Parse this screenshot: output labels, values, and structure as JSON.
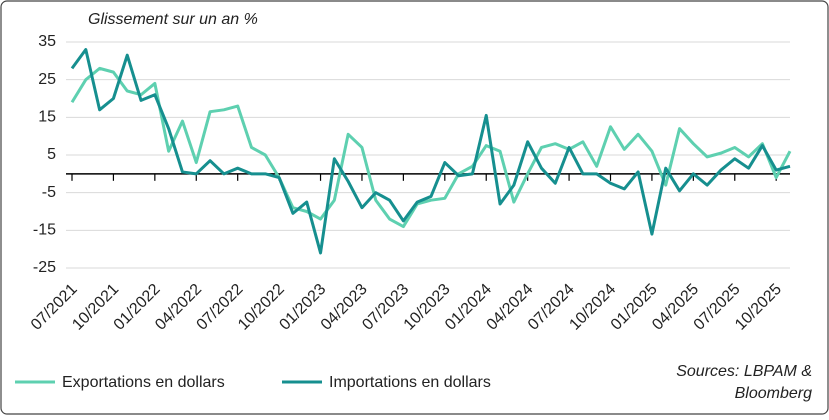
{
  "chart_data": {
    "type": "line",
    "title": "Glissement sur un an %",
    "categories": [
      "07/2021",
      null,
      null,
      "10/2021",
      null,
      null,
      "01/2022",
      null,
      null,
      "04/2022",
      null,
      null,
      "07/2022",
      null,
      null,
      "10/2022",
      null,
      null,
      "01/2023",
      null,
      null,
      "04/2023",
      null,
      null,
      "07/2023",
      null,
      null,
      "10/2023",
      null,
      null,
      "01/2024",
      null,
      null,
      "04/2024",
      null,
      null,
      "07/2024",
      null,
      null,
      "10/2024",
      null,
      null,
      "01/2025",
      null,
      null,
      "04/2025",
      null,
      null,
      "07/2025",
      null,
      null,
      "10/2025",
      null
    ],
    "series": [
      {
        "name": "Exportations en dollars",
        "color": "#5ed0b0",
        "values": [
          19,
          25,
          28,
          27,
          22,
          21,
          24,
          6,
          14,
          3,
          16.5,
          17,
          18,
          7,
          5,
          -1,
          -9,
          -10,
          -12,
          -7,
          10.5,
          7,
          -7,
          -12,
          -14,
          -8,
          -7,
          -6.5,
          0,
          2,
          7.5,
          6,
          -7.5,
          0,
          7,
          8,
          6.5,
          8.5,
          2,
          12.5,
          6.5,
          10.5,
          6,
          -3,
          12,
          8,
          4.5,
          5.5,
          7,
          4.5,
          8,
          -1,
          6
        ]
      },
      {
        "name": "Importations en dollars",
        "color": "#168f8f",
        "values": [
          28,
          33,
          17,
          20,
          31.5,
          19.5,
          21,
          12,
          0.5,
          0,
          3.5,
          0,
          1.5,
          0,
          0,
          -1,
          -10.5,
          -7.5,
          -21,
          4,
          -2,
          -9,
          -5,
          -7,
          -12.5,
          -7.5,
          -6,
          3,
          -0.5,
          0,
          15.5,
          -8,
          -3,
          8.5,
          1.5,
          -2.5,
          7,
          0,
          0,
          -2.5,
          -4,
          0.5,
          -16,
          1.5,
          -4.5,
          0,
          -3,
          1,
          4,
          1.5,
          7.5,
          1,
          2
        ]
      }
    ],
    "ylim": [
      -25,
      35
    ],
    "yticks": [
      -25,
      -15,
      -5,
      5,
      15,
      25,
      35
    ],
    "grid": true,
    "legend": "bottom",
    "source": [
      "Sources: LBPAM &",
      "Bloomberg"
    ]
  }
}
